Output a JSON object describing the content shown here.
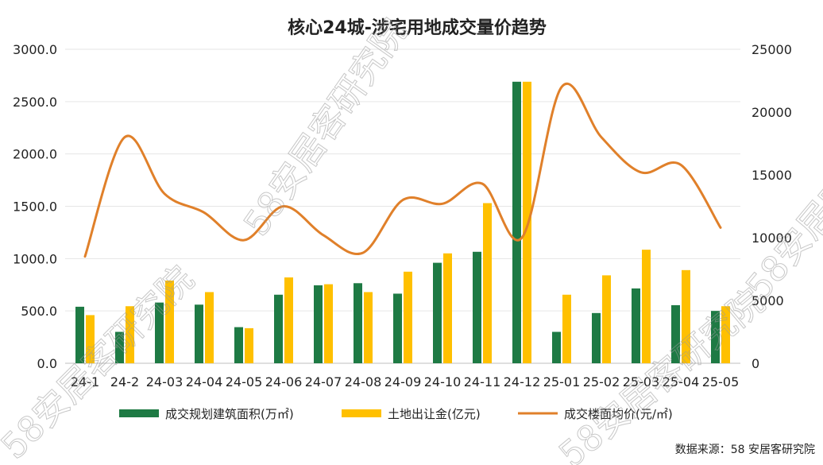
{
  "chart_data": {
    "type": "bar",
    "title": "核心24城-涉宅用地成交量价趋势",
    "categories": [
      "24-1",
      "24-2",
      "24-03",
      "24-04",
      "24-05",
      "24-06",
      "24-07",
      "24-08",
      "24-09",
      "24-10",
      "24-11",
      "24-12",
      "25-01",
      "25-02",
      "25-03",
      "25-04",
      "25-05"
    ],
    "series": [
      {
        "name": "成交规划建筑面积(万㎡)",
        "type": "bar",
        "axis": "left",
        "color": "#1e7a44",
        "values": [
          540,
          300,
          580,
          560,
          345,
          655,
          745,
          765,
          665,
          960,
          1065,
          2690,
          300,
          480,
          715,
          555,
          500
        ]
      },
      {
        "name": "土地出让金(亿元)",
        "type": "bar",
        "axis": "left",
        "color": "#ffc000",
        "values": [
          460,
          545,
          790,
          680,
          335,
          820,
          755,
          680,
          875,
          1050,
          1530,
          2690,
          655,
          840,
          1085,
          890,
          545
        ]
      },
      {
        "name": "成交楼面均价(元/㎡)",
        "type": "line",
        "axis": "right",
        "color": "#e0802a",
        "values": [
          8500,
          18000,
          13500,
          12000,
          9800,
          12500,
          10200,
          8800,
          13000,
          12700,
          14300,
          10000,
          22000,
          18000,
          15200,
          15800,
          10800
        ]
      }
    ],
    "y_left": {
      "min": 0,
      "max": 3000,
      "ticks": [
        "0.0",
        "500.0",
        "1000.0",
        "1500.0",
        "2000.0",
        "2500.0",
        "3000.0"
      ]
    },
    "y_right": {
      "min": 0,
      "max": 25000,
      "ticks": [
        "0",
        "5000",
        "10000",
        "15000",
        "20000",
        "25000"
      ]
    },
    "grid": true,
    "legend_position": "bottom"
  },
  "source": "数据来源：58 安居客研究院",
  "watermarks": [
    "58安居客研究院",
    "58安居客研究院",
    "58安居客研究院",
    "58安居客研究院"
  ]
}
